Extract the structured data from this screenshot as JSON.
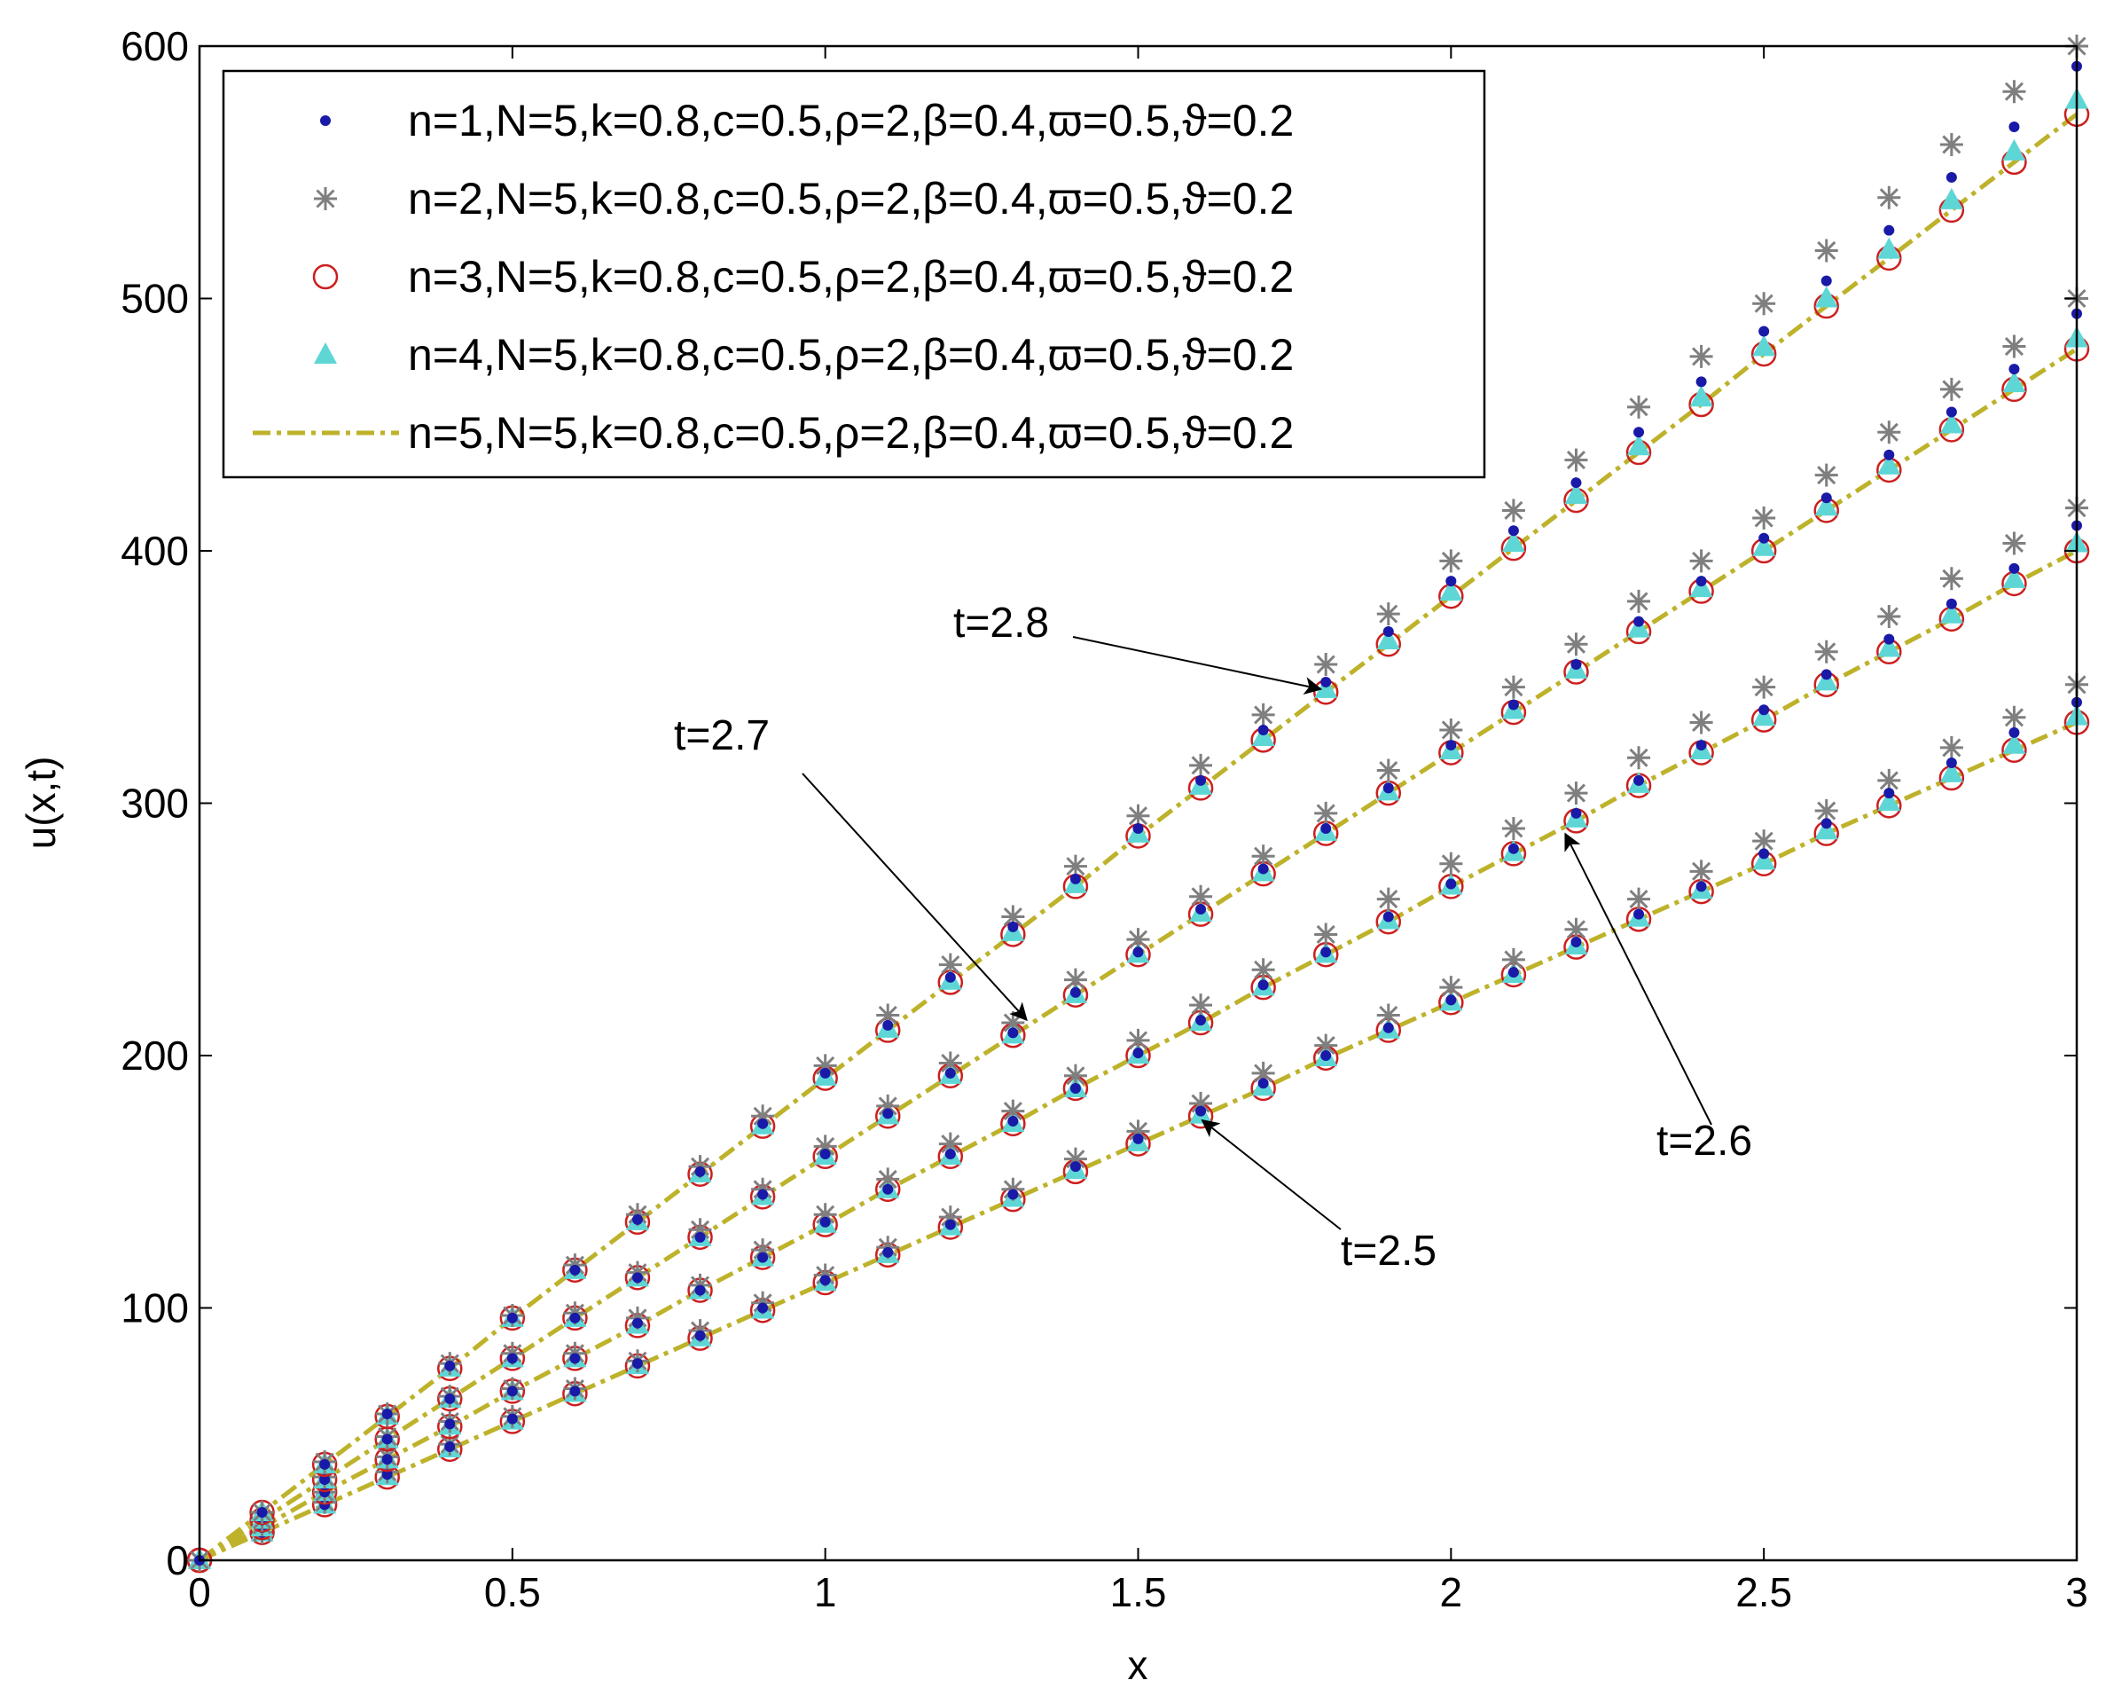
{
  "chart_data": {
    "type": "scatter",
    "xlabel": "x",
    "ylabel": "u(x,t)",
    "xlim": [
      0,
      3
    ],
    "ylim": [
      0,
      600
    ],
    "xticks": [
      0,
      0.5,
      1,
      1.5,
      2,
      2.5,
      3
    ],
    "yticks": [
      0,
      100,
      200,
      300,
      400,
      500,
      600
    ],
    "grid": false,
    "legend_position": "top-left",
    "x": [
      0,
      0.1,
      0.2,
      0.3,
      0.4,
      0.5,
      0.6,
      0.7,
      0.8,
      0.9,
      1.0,
      1.1,
      1.2,
      1.3,
      1.4,
      1.5,
      1.6,
      1.7,
      1.8,
      1.9,
      2.0,
      2.1,
      2.2,
      2.3,
      2.4,
      2.5,
      2.6,
      2.7,
      2.8,
      2.9,
      3.0
    ],
    "series": [
      {
        "name": "n=1,N=5,k=0.8,c=0.5,ρ=2,β=0.4,ϖ=0.5,ϑ=0.2",
        "marker": "dot",
        "color": "#1a1aa8"
      },
      {
        "name": "n=2,N=5,k=0.8,c=0.5,ρ=2,β=0.4,ϖ=0.5,ϑ=0.2",
        "marker": "star",
        "color": "#7f7f7f"
      },
      {
        "name": "n=3,N=5,k=0.8,c=0.5,ρ=2,β=0.4,ϖ=0.5,ϑ=0.2",
        "marker": "circle",
        "color": "#cc1f1f"
      },
      {
        "name": "n=4,N=5,k=0.8,c=0.5,ρ=2,β=0.4,ϖ=0.5,ϑ=0.2",
        "marker": "triangle",
        "color": "#5ed6d6"
      },
      {
        "name": "n=5,N=5,k=0.8,c=0.5,ρ=2,β=0.4,ϖ=0.5,ϑ=0.2",
        "marker": "dashdot-line",
        "color": "#bdb22a"
      }
    ],
    "curves": [
      {
        "label": "t=2.5",
        "slope": 110.7,
        "values_n1": [
          0,
          11,
          22,
          34,
          45,
          56,
          67,
          78,
          89,
          100,
          111,
          122,
          133,
          145,
          156,
          167,
          178,
          189,
          200,
          211,
          222,
          233,
          245,
          256,
          267,
          280,
          292,
          304,
          316,
          328,
          340
        ],
        "values_n2": [
          0,
          11,
          23,
          35,
          46,
          57,
          68,
          79,
          91,
          102,
          113,
          124,
          136,
          147,
          159,
          170,
          181,
          193,
          204,
          216,
          227,
          238,
          250,
          262,
          273,
          285,
          297,
          309,
          322,
          334,
          347
        ],
        "values_n5": [
          0,
          11,
          22,
          33,
          44,
          55,
          66,
          77,
          88,
          99,
          110,
          121,
          132,
          143,
          154,
          165,
          176,
          187,
          199,
          210,
          221,
          232,
          243,
          254,
          265,
          276,
          288,
          299,
          310,
          321,
          332
        ]
      },
      {
        "label": "t=2.6",
        "slope": 133.3,
        "values_n1": [
          0,
          13,
          27,
          40,
          54,
          67,
          80,
          94,
          107,
          120,
          134,
          147,
          161,
          174,
          187,
          201,
          214,
          228,
          241,
          255,
          268,
          282,
          296,
          309,
          323,
          337,
          351,
          365,
          379,
          393,
          410
        ],
        "values_n2": [
          0,
          14,
          27,
          41,
          55,
          68,
          82,
          96,
          109,
          123,
          137,
          151,
          165,
          178,
          192,
          206,
          220,
          234,
          248,
          262,
          276,
          290,
          304,
          318,
          332,
          346,
          360,
          374,
          389,
          403,
          417
        ],
        "values_n5": [
          0,
          13,
          27,
          40,
          53,
          67,
          80,
          93,
          107,
          120,
          133,
          147,
          160,
          173,
          187,
          200,
          213,
          227,
          240,
          253,
          267,
          280,
          293,
          307,
          320,
          333,
          347,
          360,
          373,
          387,
          400
        ]
      },
      {
        "label": "t=2.7",
        "slope": 160.0,
        "values_n1": [
          0,
          16,
          32,
          48,
          64,
          80,
          96,
          112,
          128,
          145,
          161,
          177,
          193,
          209,
          225,
          241,
          258,
          274,
          290,
          306,
          323,
          339,
          355,
          372,
          388,
          405,
          421,
          438,
          455,
          472,
          494
        ],
        "values_n2": [
          0,
          16,
          33,
          49,
          65,
          82,
          98,
          114,
          131,
          147,
          164,
          180,
          197,
          213,
          230,
          246,
          263,
          279,
          296,
          313,
          329,
          346,
          363,
          380,
          396,
          413,
          430,
          447,
          464,
          481,
          500
        ],
        "values_n5": [
          0,
          16,
          32,
          48,
          64,
          80,
          96,
          112,
          128,
          144,
          160,
          176,
          192,
          208,
          224,
          240,
          256,
          272,
          288,
          304,
          320,
          336,
          352,
          368,
          384,
          400,
          416,
          432,
          448,
          464,
          480
        ]
      },
      {
        "label": "t=2.8",
        "slope": 191.0,
        "values_n1": [
          0,
          19,
          38,
          58,
          77,
          96,
          115,
          135,
          154,
          173,
          193,
          212,
          231,
          251,
          270,
          290,
          309,
          329,
          348,
          368,
          388,
          408,
          427,
          447,
          467,
          487,
          507,
          527,
          548,
          568,
          592
        ],
        "values_n2": [
          0,
          19,
          39,
          58,
          78,
          97,
          117,
          137,
          156,
          176,
          196,
          216,
          236,
          255,
          275,
          295,
          315,
          335,
          355,
          375,
          396,
          416,
          436,
          457,
          477,
          498,
          519,
          540,
          561,
          582,
          600
        ],
        "values_n5": [
          0,
          19,
          38,
          57,
          76,
          96,
          115,
          134,
          153,
          172,
          191,
          210,
          229,
          248,
          267,
          287,
          306,
          325,
          344,
          363,
          382,
          401,
          420,
          439,
          458,
          478,
          497,
          516,
          535,
          554,
          573
        ]
      }
    ],
    "annotations": [
      {
        "text": "t=2.8",
        "points_to_x": 1.8,
        "points_to_curve": "t=2.8"
      },
      {
        "text": "t=2.7",
        "points_to_x": 1.33,
        "points_to_curve": "t=2.7"
      },
      {
        "text": "t=2.6",
        "points_to_x": 2.18,
        "points_to_curve": "t=2.6"
      },
      {
        "text": "t=2.5",
        "points_to_x": 1.6,
        "points_to_curve": "t=2.5"
      }
    ]
  }
}
